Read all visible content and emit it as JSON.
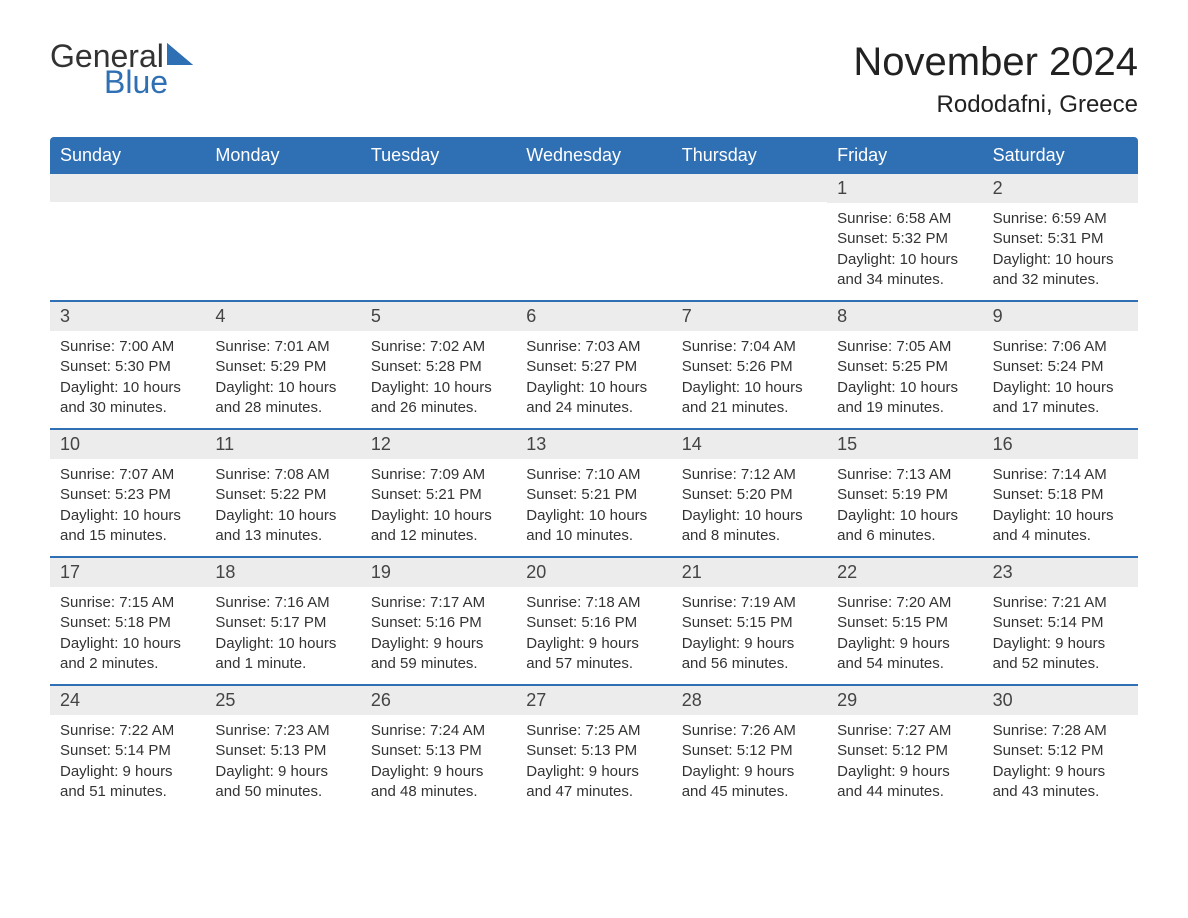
{
  "logo": {
    "text_general": "General",
    "text_blue": "Blue",
    "sail_color": "#2f6fb3"
  },
  "header": {
    "month_title": "November 2024",
    "location": "Rododafni, Greece"
  },
  "colors": {
    "header_bg": "#2f6fb3",
    "header_text": "#ffffff",
    "daybar_bg": "#ececec",
    "text": "#333333",
    "row_border": "#2f6fb3"
  },
  "weekdays": [
    "Sunday",
    "Monday",
    "Tuesday",
    "Wednesday",
    "Thursday",
    "Friday",
    "Saturday"
  ],
  "weeks": [
    [
      null,
      null,
      null,
      null,
      null,
      {
        "num": "1",
        "sunrise": "Sunrise: 6:58 AM",
        "sunset": "Sunset: 5:32 PM",
        "daylight1": "Daylight: 10 hours",
        "daylight2": "and 34 minutes."
      },
      {
        "num": "2",
        "sunrise": "Sunrise: 6:59 AM",
        "sunset": "Sunset: 5:31 PM",
        "daylight1": "Daylight: 10 hours",
        "daylight2": "and 32 minutes."
      }
    ],
    [
      {
        "num": "3",
        "sunrise": "Sunrise: 7:00 AM",
        "sunset": "Sunset: 5:30 PM",
        "daylight1": "Daylight: 10 hours",
        "daylight2": "and 30 minutes."
      },
      {
        "num": "4",
        "sunrise": "Sunrise: 7:01 AM",
        "sunset": "Sunset: 5:29 PM",
        "daylight1": "Daylight: 10 hours",
        "daylight2": "and 28 minutes."
      },
      {
        "num": "5",
        "sunrise": "Sunrise: 7:02 AM",
        "sunset": "Sunset: 5:28 PM",
        "daylight1": "Daylight: 10 hours",
        "daylight2": "and 26 minutes."
      },
      {
        "num": "6",
        "sunrise": "Sunrise: 7:03 AM",
        "sunset": "Sunset: 5:27 PM",
        "daylight1": "Daylight: 10 hours",
        "daylight2": "and 24 minutes."
      },
      {
        "num": "7",
        "sunrise": "Sunrise: 7:04 AM",
        "sunset": "Sunset: 5:26 PM",
        "daylight1": "Daylight: 10 hours",
        "daylight2": "and 21 minutes."
      },
      {
        "num": "8",
        "sunrise": "Sunrise: 7:05 AM",
        "sunset": "Sunset: 5:25 PM",
        "daylight1": "Daylight: 10 hours",
        "daylight2": "and 19 minutes."
      },
      {
        "num": "9",
        "sunrise": "Sunrise: 7:06 AM",
        "sunset": "Sunset: 5:24 PM",
        "daylight1": "Daylight: 10 hours",
        "daylight2": "and 17 minutes."
      }
    ],
    [
      {
        "num": "10",
        "sunrise": "Sunrise: 7:07 AM",
        "sunset": "Sunset: 5:23 PM",
        "daylight1": "Daylight: 10 hours",
        "daylight2": "and 15 minutes."
      },
      {
        "num": "11",
        "sunrise": "Sunrise: 7:08 AM",
        "sunset": "Sunset: 5:22 PM",
        "daylight1": "Daylight: 10 hours",
        "daylight2": "and 13 minutes."
      },
      {
        "num": "12",
        "sunrise": "Sunrise: 7:09 AM",
        "sunset": "Sunset: 5:21 PM",
        "daylight1": "Daylight: 10 hours",
        "daylight2": "and 12 minutes."
      },
      {
        "num": "13",
        "sunrise": "Sunrise: 7:10 AM",
        "sunset": "Sunset: 5:21 PM",
        "daylight1": "Daylight: 10 hours",
        "daylight2": "and 10 minutes."
      },
      {
        "num": "14",
        "sunrise": "Sunrise: 7:12 AM",
        "sunset": "Sunset: 5:20 PM",
        "daylight1": "Daylight: 10 hours",
        "daylight2": "and 8 minutes."
      },
      {
        "num": "15",
        "sunrise": "Sunrise: 7:13 AM",
        "sunset": "Sunset: 5:19 PM",
        "daylight1": "Daylight: 10 hours",
        "daylight2": "and 6 minutes."
      },
      {
        "num": "16",
        "sunrise": "Sunrise: 7:14 AM",
        "sunset": "Sunset: 5:18 PM",
        "daylight1": "Daylight: 10 hours",
        "daylight2": "and 4 minutes."
      }
    ],
    [
      {
        "num": "17",
        "sunrise": "Sunrise: 7:15 AM",
        "sunset": "Sunset: 5:18 PM",
        "daylight1": "Daylight: 10 hours",
        "daylight2": "and 2 minutes."
      },
      {
        "num": "18",
        "sunrise": "Sunrise: 7:16 AM",
        "sunset": "Sunset: 5:17 PM",
        "daylight1": "Daylight: 10 hours",
        "daylight2": "and 1 minute."
      },
      {
        "num": "19",
        "sunrise": "Sunrise: 7:17 AM",
        "sunset": "Sunset: 5:16 PM",
        "daylight1": "Daylight: 9 hours",
        "daylight2": "and 59 minutes."
      },
      {
        "num": "20",
        "sunrise": "Sunrise: 7:18 AM",
        "sunset": "Sunset: 5:16 PM",
        "daylight1": "Daylight: 9 hours",
        "daylight2": "and 57 minutes."
      },
      {
        "num": "21",
        "sunrise": "Sunrise: 7:19 AM",
        "sunset": "Sunset: 5:15 PM",
        "daylight1": "Daylight: 9 hours",
        "daylight2": "and 56 minutes."
      },
      {
        "num": "22",
        "sunrise": "Sunrise: 7:20 AM",
        "sunset": "Sunset: 5:15 PM",
        "daylight1": "Daylight: 9 hours",
        "daylight2": "and 54 minutes."
      },
      {
        "num": "23",
        "sunrise": "Sunrise: 7:21 AM",
        "sunset": "Sunset: 5:14 PM",
        "daylight1": "Daylight: 9 hours",
        "daylight2": "and 52 minutes."
      }
    ],
    [
      {
        "num": "24",
        "sunrise": "Sunrise: 7:22 AM",
        "sunset": "Sunset: 5:14 PM",
        "daylight1": "Daylight: 9 hours",
        "daylight2": "and 51 minutes."
      },
      {
        "num": "25",
        "sunrise": "Sunrise: 7:23 AM",
        "sunset": "Sunset: 5:13 PM",
        "daylight1": "Daylight: 9 hours",
        "daylight2": "and 50 minutes."
      },
      {
        "num": "26",
        "sunrise": "Sunrise: 7:24 AM",
        "sunset": "Sunset: 5:13 PM",
        "daylight1": "Daylight: 9 hours",
        "daylight2": "and 48 minutes."
      },
      {
        "num": "27",
        "sunrise": "Sunrise: 7:25 AM",
        "sunset": "Sunset: 5:13 PM",
        "daylight1": "Daylight: 9 hours",
        "daylight2": "and 47 minutes."
      },
      {
        "num": "28",
        "sunrise": "Sunrise: 7:26 AM",
        "sunset": "Sunset: 5:12 PM",
        "daylight1": "Daylight: 9 hours",
        "daylight2": "and 45 minutes."
      },
      {
        "num": "29",
        "sunrise": "Sunrise: 7:27 AM",
        "sunset": "Sunset: 5:12 PM",
        "daylight1": "Daylight: 9 hours",
        "daylight2": "and 44 minutes."
      },
      {
        "num": "30",
        "sunrise": "Sunrise: 7:28 AM",
        "sunset": "Sunset: 5:12 PM",
        "daylight1": "Daylight: 9 hours",
        "daylight2": "and 43 minutes."
      }
    ]
  ]
}
